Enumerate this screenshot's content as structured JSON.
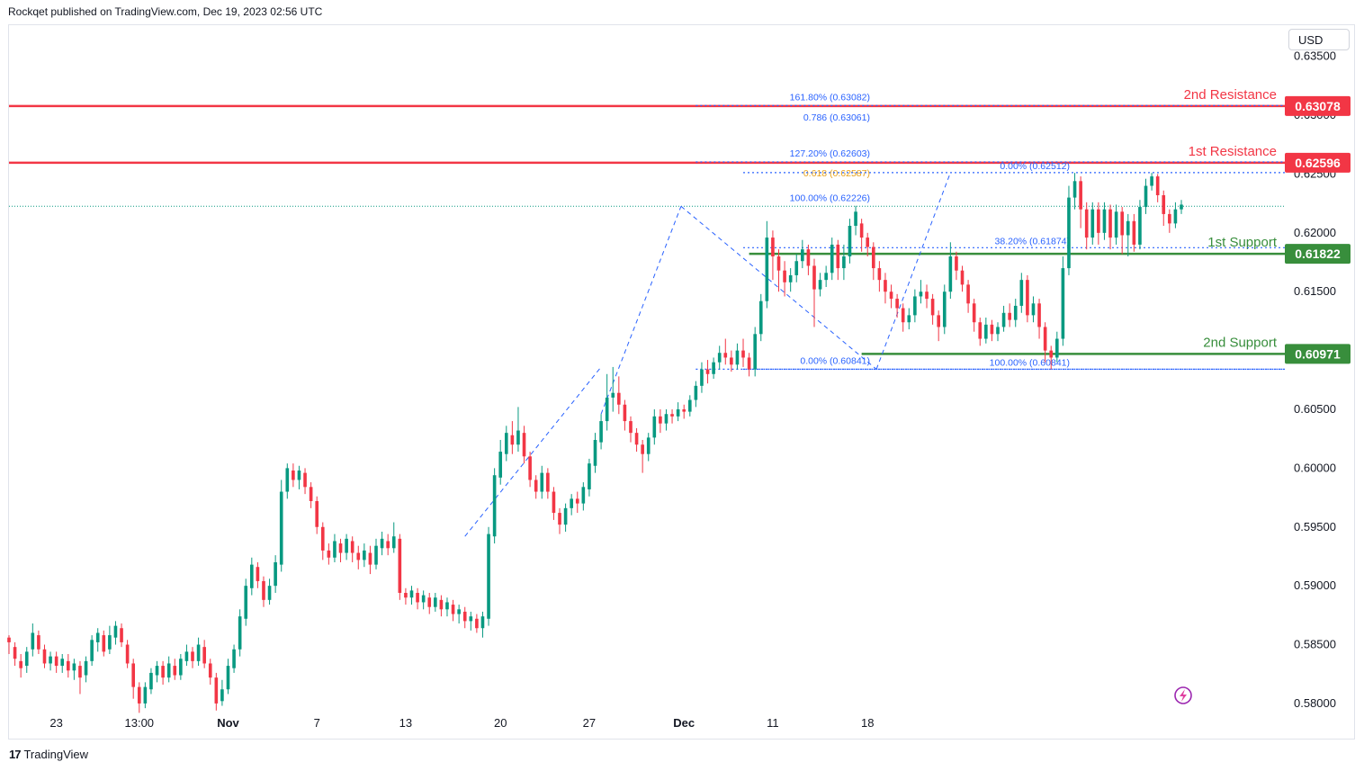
{
  "header": {
    "publisher_line": "Rockqet published on TradingView.com, Dec 19, 2023 02:56 UTC"
  },
  "toolbar": {
    "currency": "USD"
  },
  "footer": {
    "logo_text": "TradingView"
  },
  "colors": {
    "up": "#089981",
    "down": "#f23645",
    "resistance": "#f23645",
    "support": "#388e3c",
    "fib": "#2962ff",
    "fib_gold": "#e8a21a"
  },
  "chart_data": {
    "type": "candlestick",
    "title": "",
    "ylim": [
      0.579,
      0.6375
    ],
    "y_ticks": [
      {
        "value": 0.635,
        "label": "0.63500"
      },
      {
        "value": 0.63,
        "label": "0.63000"
      },
      {
        "value": 0.625,
        "label": "0.62500"
      },
      {
        "value": 0.62,
        "label": "0.62000"
      },
      {
        "value": 0.615,
        "label": "0.61500"
      },
      {
        "value": 0.61,
        "label": "0.61000"
      },
      {
        "value": 0.605,
        "label": "0.60500"
      },
      {
        "value": 0.6,
        "label": "0.60000"
      },
      {
        "value": 0.595,
        "label": "0.59500"
      },
      {
        "value": 0.59,
        "label": "0.59000"
      },
      {
        "value": 0.585,
        "label": "0.58500"
      },
      {
        "value": 0.58,
        "label": "0.58000"
      }
    ],
    "x_ticks": [
      {
        "index": 8,
        "label": "23",
        "bold": false
      },
      {
        "index": 22,
        "label": "13:00",
        "bold": false
      },
      {
        "index": 37,
        "label": "Nov",
        "bold": true
      },
      {
        "index": 52,
        "label": "7",
        "bold": false
      },
      {
        "index": 67,
        "label": "13",
        "bold": false
      },
      {
        "index": 83,
        "label": "20",
        "bold": false
      },
      {
        "index": 98,
        "label": "27",
        "bold": false
      },
      {
        "index": 114,
        "label": "Dec",
        "bold": true
      },
      {
        "index": 129,
        "label": "11",
        "bold": false
      },
      {
        "index": 145,
        "label": "18",
        "bold": false
      }
    ],
    "levels": [
      {
        "name": "2nd Resistance",
        "value": 0.63078,
        "label": "0.63078",
        "kind": "resistance"
      },
      {
        "name": "1st Resistance",
        "value": 0.62596,
        "label": "0.62596",
        "kind": "resistance"
      },
      {
        "name": "1st Support",
        "value": 0.61822,
        "label": "0.61822",
        "kind": "support"
      },
      {
        "name": "2nd Support",
        "value": 0.60971,
        "label": "0.60971",
        "kind": "support"
      }
    ],
    "fib_left": [
      {
        "text": "161.80% (0.63082)",
        "value": 0.63082
      },
      {
        "text": "0.786 (0.63061)",
        "value": 0.63061
      },
      {
        "text": "127.20% (0.62603)",
        "value": 0.62603
      },
      {
        "text": "0.618 (0.62587)",
        "value": 0.62587,
        "gold": true
      },
      {
        "text": "100.00% (0.62226)",
        "value": 0.62226
      },
      {
        "text": "0.00% (0.60841)",
        "value": 0.60841
      }
    ],
    "fib_right": [
      {
        "text": "0.00% (0.62512)",
        "value": 0.62512
      },
      {
        "text": "38.20% (0.61874)",
        "value": 0.61874
      },
      {
        "text": "100.00% (0.60841)",
        "value": 0.60841
      }
    ],
    "last_price": 0.62226,
    "candles": [
      [
        0.5856,
        0.5852,
        0.5842,
        0.5858
      ],
      [
        0.5848,
        0.5838,
        0.5832,
        0.5852
      ],
      [
        0.5836,
        0.583,
        0.5822,
        0.5842
      ],
      [
        0.5832,
        0.5844,
        0.5826,
        0.5848
      ],
      [
        0.5846,
        0.586,
        0.584,
        0.5868
      ],
      [
        0.5858,
        0.5846,
        0.5842,
        0.5862
      ],
      [
        0.5846,
        0.5834,
        0.583,
        0.585
      ],
      [
        0.5834,
        0.584,
        0.5828,
        0.5844
      ],
      [
        0.584,
        0.5832,
        0.5826,
        0.5844
      ],
      [
        0.5832,
        0.5838,
        0.5826,
        0.5842
      ],
      [
        0.5836,
        0.5828,
        0.5822,
        0.5842
      ],
      [
        0.5828,
        0.5834,
        0.582,
        0.5838
      ],
      [
        0.5832,
        0.5822,
        0.5808,
        0.5836
      ],
      [
        0.5824,
        0.5836,
        0.5818,
        0.584
      ],
      [
        0.5836,
        0.5854,
        0.5832,
        0.5858
      ],
      [
        0.5852,
        0.586,
        0.5844,
        0.5864
      ],
      [
        0.5858,
        0.5844,
        0.584,
        0.5862
      ],
      [
        0.5846,
        0.5858,
        0.5842,
        0.5866
      ],
      [
        0.5856,
        0.5866,
        0.585,
        0.587
      ],
      [
        0.5864,
        0.5852,
        0.5848,
        0.5868
      ],
      [
        0.585,
        0.5834,
        0.583,
        0.5854
      ],
      [
        0.5834,
        0.5814,
        0.5804,
        0.5838
      ],
      [
        0.5814,
        0.58,
        0.5792,
        0.5818
      ],
      [
        0.58,
        0.5814,
        0.5796,
        0.5818
      ],
      [
        0.5812,
        0.5826,
        0.5808,
        0.583
      ],
      [
        0.5824,
        0.5832,
        0.5818,
        0.5836
      ],
      [
        0.5832,
        0.5822,
        0.5816,
        0.5836
      ],
      [
        0.5822,
        0.5834,
        0.5818,
        0.584
      ],
      [
        0.5832,
        0.5824,
        0.582,
        0.5838
      ],
      [
        0.5824,
        0.5838,
        0.582,
        0.5842
      ],
      [
        0.5836,
        0.5844,
        0.5832,
        0.585
      ],
      [
        0.5844,
        0.5836,
        0.583,
        0.5848
      ],
      [
        0.5836,
        0.585,
        0.5832,
        0.5856
      ],
      [
        0.5848,
        0.5834,
        0.583,
        0.5854
      ],
      [
        0.5834,
        0.5822,
        0.5816,
        0.5838
      ],
      [
        0.5822,
        0.58,
        0.5794,
        0.5826
      ],
      [
        0.5802,
        0.5812,
        0.5798,
        0.582
      ],
      [
        0.5812,
        0.5832,
        0.5808,
        0.5838
      ],
      [
        0.583,
        0.5846,
        0.5826,
        0.585
      ],
      [
        0.5846,
        0.5874,
        0.584,
        0.588
      ],
      [
        0.5872,
        0.59,
        0.5866,
        0.5906
      ],
      [
        0.5898,
        0.5918,
        0.5892,
        0.5924
      ],
      [
        0.5916,
        0.5904,
        0.5898,
        0.592
      ],
      [
        0.5904,
        0.5888,
        0.5882,
        0.5908
      ],
      [
        0.5888,
        0.59,
        0.5884,
        0.5906
      ],
      [
        0.59,
        0.592,
        0.5894,
        0.5926
      ],
      [
        0.5918,
        0.598,
        0.5912,
        0.599
      ],
      [
        0.598,
        0.6,
        0.5974,
        0.6004
      ],
      [
        0.5998,
        0.599,
        0.5984,
        0.6004
      ],
      [
        0.599,
        0.5998,
        0.5982,
        0.6002
      ],
      [
        0.5996,
        0.5984,
        0.5978,
        0.6
      ],
      [
        0.5984,
        0.5972,
        0.5966,
        0.5988
      ],
      [
        0.5972,
        0.595,
        0.5944,
        0.5976
      ],
      [
        0.595,
        0.593,
        0.5922,
        0.5954
      ],
      [
        0.593,
        0.5924,
        0.5918,
        0.5936
      ],
      [
        0.5924,
        0.5938,
        0.592,
        0.5944
      ],
      [
        0.5936,
        0.5928,
        0.592,
        0.594
      ],
      [
        0.5928,
        0.594,
        0.5922,
        0.5944
      ],
      [
        0.5938,
        0.5928,
        0.592,
        0.5942
      ],
      [
        0.5928,
        0.5922,
        0.5914,
        0.5934
      ],
      [
        0.5922,
        0.593,
        0.5916,
        0.5936
      ],
      [
        0.5928,
        0.5918,
        0.591,
        0.5934
      ],
      [
        0.5918,
        0.5934,
        0.5914,
        0.594
      ],
      [
        0.5932,
        0.594,
        0.5926,
        0.5946
      ],
      [
        0.5938,
        0.5932,
        0.5926,
        0.5944
      ],
      [
        0.5932,
        0.5942,
        0.5928,
        0.5954
      ],
      [
        0.594,
        0.5894,
        0.5888,
        0.5944
      ],
      [
        0.5894,
        0.589,
        0.5884,
        0.5898
      ],
      [
        0.589,
        0.5896,
        0.5884,
        0.59
      ],
      [
        0.5894,
        0.5886,
        0.588,
        0.5898
      ],
      [
        0.5886,
        0.5892,
        0.588,
        0.5896
      ],
      [
        0.589,
        0.5882,
        0.5876,
        0.5894
      ],
      [
        0.5882,
        0.589,
        0.5878,
        0.5894
      ],
      [
        0.5888,
        0.588,
        0.5874,
        0.5892
      ],
      [
        0.588,
        0.5886,
        0.5874,
        0.589
      ],
      [
        0.5884,
        0.5876,
        0.587,
        0.5888
      ],
      [
        0.5876,
        0.588,
        0.5868,
        0.5884
      ],
      [
        0.5878,
        0.587,
        0.5864,
        0.5882
      ],
      [
        0.587,
        0.5874,
        0.5862,
        0.5878
      ],
      [
        0.5872,
        0.5864,
        0.586,
        0.5876
      ],
      [
        0.5864,
        0.5874,
        0.5856,
        0.5878
      ],
      [
        0.5872,
        0.5944,
        0.5866,
        0.595
      ],
      [
        0.5942,
        0.5994,
        0.5936,
        0.6
      ],
      [
        0.5992,
        0.6014,
        0.5986,
        0.6024
      ],
      [
        0.6012,
        0.603,
        0.6006,
        0.6036
      ],
      [
        0.6028,
        0.602,
        0.6012,
        0.604
      ],
      [
        0.602,
        0.6032,
        0.6014,
        0.6052
      ],
      [
        0.603,
        0.601,
        0.6004,
        0.6036
      ],
      [
        0.601,
        0.599,
        0.5984,
        0.6014
      ],
      [
        0.599,
        0.598,
        0.5974,
        0.5994
      ],
      [
        0.598,
        0.5996,
        0.5974,
        0.6002
      ],
      [
        0.5996,
        0.598,
        0.5974,
        0.6
      ],
      [
        0.598,
        0.5962,
        0.5956,
        0.5984
      ],
      [
        0.5962,
        0.5952,
        0.5944,
        0.5966
      ],
      [
        0.5952,
        0.5966,
        0.5946,
        0.597
      ],
      [
        0.5966,
        0.5974,
        0.596,
        0.5978
      ],
      [
        0.5974,
        0.597,
        0.5962,
        0.598
      ],
      [
        0.597,
        0.5984,
        0.5964,
        0.5988
      ],
      [
        0.5982,
        0.6004,
        0.5976,
        0.6008
      ],
      [
        0.6002,
        0.6024,
        0.5996,
        0.603
      ],
      [
        0.6022,
        0.604,
        0.6016,
        0.6046
      ],
      [
        0.604,
        0.606,
        0.6032,
        0.608
      ],
      [
        0.606,
        0.6064,
        0.6048,
        0.6086
      ],
      [
        0.6064,
        0.6054,
        0.6046,
        0.6078
      ],
      [
        0.6054,
        0.604,
        0.6032,
        0.6058
      ],
      [
        0.604,
        0.603,
        0.6022,
        0.6044
      ],
      [
        0.603,
        0.602,
        0.6014,
        0.6034
      ],
      [
        0.602,
        0.6012,
        0.5996,
        0.6024
      ],
      [
        0.6012,
        0.6026,
        0.6006,
        0.603
      ],
      [
        0.6026,
        0.6044,
        0.602,
        0.605
      ],
      [
        0.6044,
        0.6038,
        0.603,
        0.605
      ],
      [
        0.6038,
        0.6046,
        0.6032,
        0.605
      ],
      [
        0.6046,
        0.6044,
        0.6038,
        0.605
      ],
      [
        0.6044,
        0.605,
        0.604,
        0.6056
      ],
      [
        0.605,
        0.6048,
        0.6042,
        0.6054
      ],
      [
        0.6048,
        0.6058,
        0.6044,
        0.6062
      ],
      [
        0.6058,
        0.607,
        0.6052,
        0.6074
      ],
      [
        0.607,
        0.6084,
        0.6064,
        0.609
      ],
      [
        0.6084,
        0.608,
        0.6072,
        0.6092
      ],
      [
        0.608,
        0.609,
        0.6076,
        0.6094
      ],
      [
        0.609,
        0.6098,
        0.6084,
        0.6104
      ],
      [
        0.6098,
        0.6094,
        0.6088,
        0.611
      ],
      [
        0.6094,
        0.6088,
        0.6082,
        0.61
      ],
      [
        0.6088,
        0.61,
        0.6084,
        0.6106
      ],
      [
        0.61,
        0.6094,
        0.6086,
        0.611
      ],
      [
        0.6094,
        0.6084,
        0.6078,
        0.6098
      ],
      [
        0.6084,
        0.6114,
        0.6078,
        0.612
      ],
      [
        0.6114,
        0.6142,
        0.6108,
        0.6148
      ],
      [
        0.6142,
        0.6196,
        0.6136,
        0.621
      ],
      [
        0.6196,
        0.618,
        0.616,
        0.6202
      ],
      [
        0.618,
        0.6168,
        0.615,
        0.6186
      ],
      [
        0.6168,
        0.6158,
        0.6146,
        0.6176
      ],
      [
        0.6158,
        0.6164,
        0.615,
        0.617
      ],
      [
        0.6164,
        0.6176,
        0.6158,
        0.6182
      ],
      [
        0.6176,
        0.6186,
        0.617,
        0.6194
      ],
      [
        0.6186,
        0.6172,
        0.6164,
        0.619
      ],
      [
        0.6172,
        0.6152,
        0.612,
        0.6178
      ],
      [
        0.6152,
        0.616,
        0.6146,
        0.6166
      ],
      [
        0.616,
        0.6166,
        0.6154,
        0.6172
      ],
      [
        0.6166,
        0.619,
        0.616,
        0.6196
      ],
      [
        0.619,
        0.617,
        0.616,
        0.6194
      ],
      [
        0.617,
        0.618,
        0.616,
        0.619
      ],
      [
        0.618,
        0.6206,
        0.6174,
        0.6212
      ],
      [
        0.6206,
        0.6218,
        0.6198,
        0.6223
      ],
      [
        0.6208,
        0.6196,
        0.6184,
        0.6212
      ],
      [
        0.6196,
        0.6188,
        0.618,
        0.62
      ],
      [
        0.6188,
        0.617,
        0.616,
        0.6192
      ],
      [
        0.617,
        0.616,
        0.615,
        0.6176
      ],
      [
        0.616,
        0.615,
        0.614,
        0.6166
      ],
      [
        0.615,
        0.6144,
        0.6136,
        0.6156
      ],
      [
        0.6144,
        0.6136,
        0.6128,
        0.6148
      ],
      [
        0.6136,
        0.6124,
        0.6116,
        0.614
      ],
      [
        0.6124,
        0.613,
        0.6118,
        0.6136
      ],
      [
        0.613,
        0.6146,
        0.6124,
        0.6152
      ],
      [
        0.6146,
        0.615,
        0.614,
        0.616
      ],
      [
        0.615,
        0.6144,
        0.6136,
        0.6156
      ],
      [
        0.6144,
        0.613,
        0.6122,
        0.6148
      ],
      [
        0.613,
        0.612,
        0.6108,
        0.6134
      ],
      [
        0.612,
        0.615,
        0.6114,
        0.6156
      ],
      [
        0.615,
        0.618,
        0.6144,
        0.6192
      ],
      [
        0.618,
        0.6168,
        0.616,
        0.6184
      ],
      [
        0.6168,
        0.6156,
        0.615,
        0.6172
      ],
      [
        0.6156,
        0.614,
        0.6132,
        0.616
      ],
      [
        0.614,
        0.6124,
        0.6116,
        0.6144
      ],
      [
        0.6124,
        0.611,
        0.6104,
        0.6128
      ],
      [
        0.611,
        0.6122,
        0.6106,
        0.6128
      ],
      [
        0.6122,
        0.6114,
        0.6108,
        0.6126
      ],
      [
        0.6114,
        0.612,
        0.6108,
        0.6124
      ],
      [
        0.612,
        0.6132,
        0.6116,
        0.6138
      ],
      [
        0.6132,
        0.6126,
        0.612,
        0.614
      ],
      [
        0.6126,
        0.6138,
        0.612,
        0.6144
      ],
      [
        0.6138,
        0.616,
        0.6132,
        0.6166
      ],
      [
        0.616,
        0.613,
        0.6124,
        0.6164
      ],
      [
        0.613,
        0.614,
        0.6124,
        0.6146
      ],
      [
        0.614,
        0.612,
        0.611,
        0.6144
      ],
      [
        0.612,
        0.61,
        0.609,
        0.6124
      ],
      [
        0.61,
        0.6094,
        0.6084,
        0.6104
      ],
      [
        0.6094,
        0.611,
        0.609,
        0.6116
      ],
      [
        0.611,
        0.617,
        0.6104,
        0.618
      ],
      [
        0.617,
        0.623,
        0.6164,
        0.624
      ],
      [
        0.623,
        0.6244,
        0.622,
        0.6251
      ],
      [
        0.6244,
        0.622,
        0.6204,
        0.6248
      ],
      [
        0.622,
        0.6196,
        0.6186,
        0.6226
      ],
      [
        0.6196,
        0.622,
        0.619,
        0.6226
      ],
      [
        0.622,
        0.62,
        0.619,
        0.6226
      ],
      [
        0.62,
        0.622,
        0.6194,
        0.6226
      ],
      [
        0.622,
        0.6196,
        0.6186,
        0.6224
      ],
      [
        0.6196,
        0.6218,
        0.619,
        0.6224
      ],
      [
        0.6218,
        0.6198,
        0.6182,
        0.6222
      ],
      [
        0.6198,
        0.621,
        0.618,
        0.6216
      ],
      [
        0.621,
        0.619,
        0.6184,
        0.6216
      ],
      [
        0.619,
        0.6222,
        0.6186,
        0.6228
      ],
      [
        0.6222,
        0.624,
        0.6216,
        0.6246
      ],
      [
        0.624,
        0.6248,
        0.6236,
        0.6251
      ],
      [
        0.6248,
        0.6232,
        0.6226,
        0.625
      ],
      [
        0.6232,
        0.6216,
        0.6206,
        0.6236
      ],
      [
        0.6216,
        0.6208,
        0.62,
        0.622
      ],
      [
        0.6208,
        0.622,
        0.6204,
        0.6226
      ],
      [
        0.622,
        0.6224,
        0.6216,
        0.6228
      ]
    ]
  }
}
